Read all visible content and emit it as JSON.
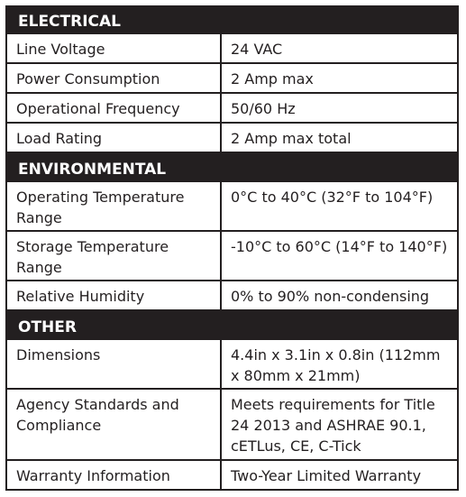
{
  "sections": [
    {
      "title": "ELECTRICAL",
      "rows": [
        {
          "label": "Line Voltage",
          "value": "24 VAC"
        },
        {
          "label": "Power Consumption",
          "value": "2 Amp max"
        },
        {
          "label": "Operational Frequency",
          "value": "50/60 Hz"
        },
        {
          "label": "Load Rating",
          "value": "2 Amp max total"
        }
      ]
    },
    {
      "title": "ENVIRONMENTAL",
      "rows": [
        {
          "label": "Operating Temperature Range",
          "value": "0°C to 40°C (32°F to 104°F)"
        },
        {
          "label": "Storage Temperature Range",
          "value": "-10°C to 60°C (14°F to 140°F)"
        },
        {
          "label": "Relative Humidity",
          "value": "0% to 90% non-condensing"
        }
      ]
    },
    {
      "title": "OTHER",
      "rows": [
        {
          "label": "Dimensions",
          "value": "4.4in x 3.1in x 0.8in (112mm x 80mm x 21mm)"
        },
        {
          "label": "Agency Standards and Compliance",
          "value": "Meets requirements for Title 24 2013 and ASHRAE 90.1, cETLus, CE, C-Tick"
        },
        {
          "label": "Warranty Information",
          "value": "Two-Year Limited Warranty"
        }
      ]
    }
  ]
}
